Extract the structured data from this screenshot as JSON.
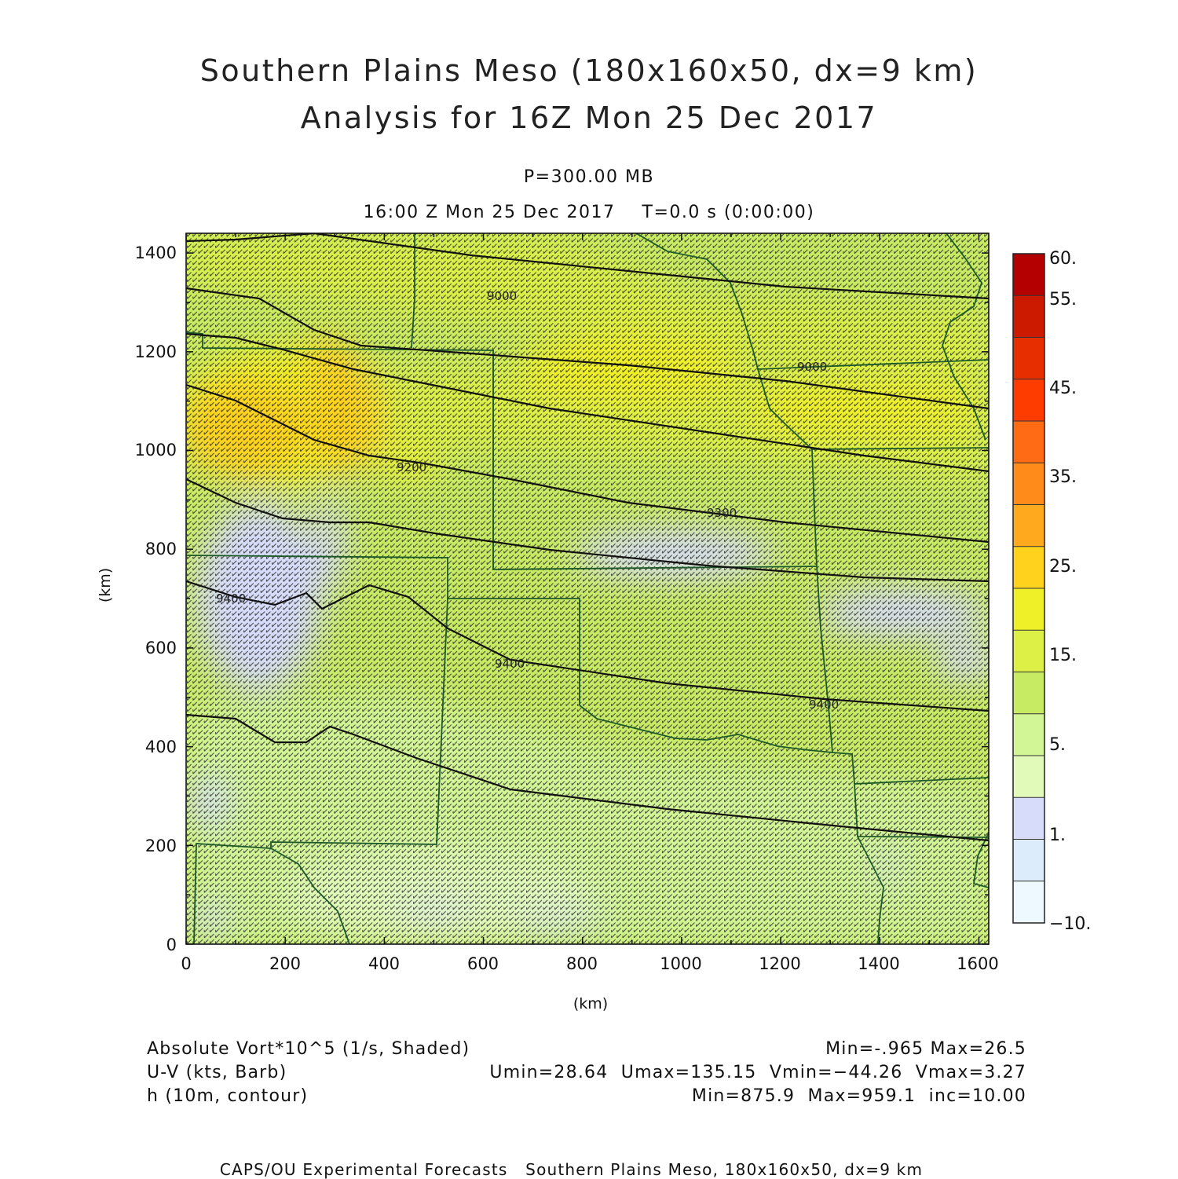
{
  "header": {
    "title_line1": "Southern Plains Meso (180x160x50, dx=9 km)",
    "title_line2": "Analysis for 16Z Mon 25 Dec 2017",
    "level": "P=300.00 MB",
    "valid_time": "16:00 Z Mon 25 Dec 2017    T=0.0 s (0:00:00)"
  },
  "axes": {
    "x_label": "(km)",
    "y_label": "(km)",
    "x_ticks": [
      "0",
      "200",
      "400",
      "600",
      "800",
      "1000",
      "1200",
      "1400",
      "1600"
    ],
    "y_ticks": [
      "0",
      "200",
      "400",
      "600",
      "800",
      "1000",
      "1200",
      "1400"
    ],
    "x_range": [
      0,
      1620
    ],
    "y_range": [
      0,
      1440
    ]
  },
  "colorbar": {
    "labels": [
      "60.",
      "55.",
      "45.",
      "35.",
      "25.",
      "15.",
      "5.",
      "1.",
      "−10."
    ],
    "colors": [
      "#b40000",
      "#cc1a00",
      "#e62e00",
      "#ff3c00",
      "#ff6a14",
      "#ff8c1a",
      "#ffaa1e",
      "#ffd21e",
      "#f0f028",
      "#dcf046",
      "#c8eb64",
      "#d2f596",
      "#e1fab9",
      "#d7dcfa",
      "#dcecfa",
      "#eef8ff"
    ]
  },
  "contour_labels": [
    "9000",
    "9000",
    "9200",
    "9300",
    "9400",
    "9400",
    "9400"
  ],
  "footer": {
    "field1": "Absolute Vort*10^5 (1/s, Shaded)",
    "field1_stats": "Min=-.965 Max=26.5",
    "field2": "U-V (kts, Barb)",
    "field2_stats": "Umin=28.64  Umax=135.15  Vmin=−44.26  Vmax=3.27",
    "field3": "h (10m, contour)",
    "field3_stats": "Min=875.9  Max=959.1  inc=10.00",
    "credit": "CAPS/OU Experimental Forecasts   Southern Plains Meso, 180x160x50, dx=9 km"
  }
}
